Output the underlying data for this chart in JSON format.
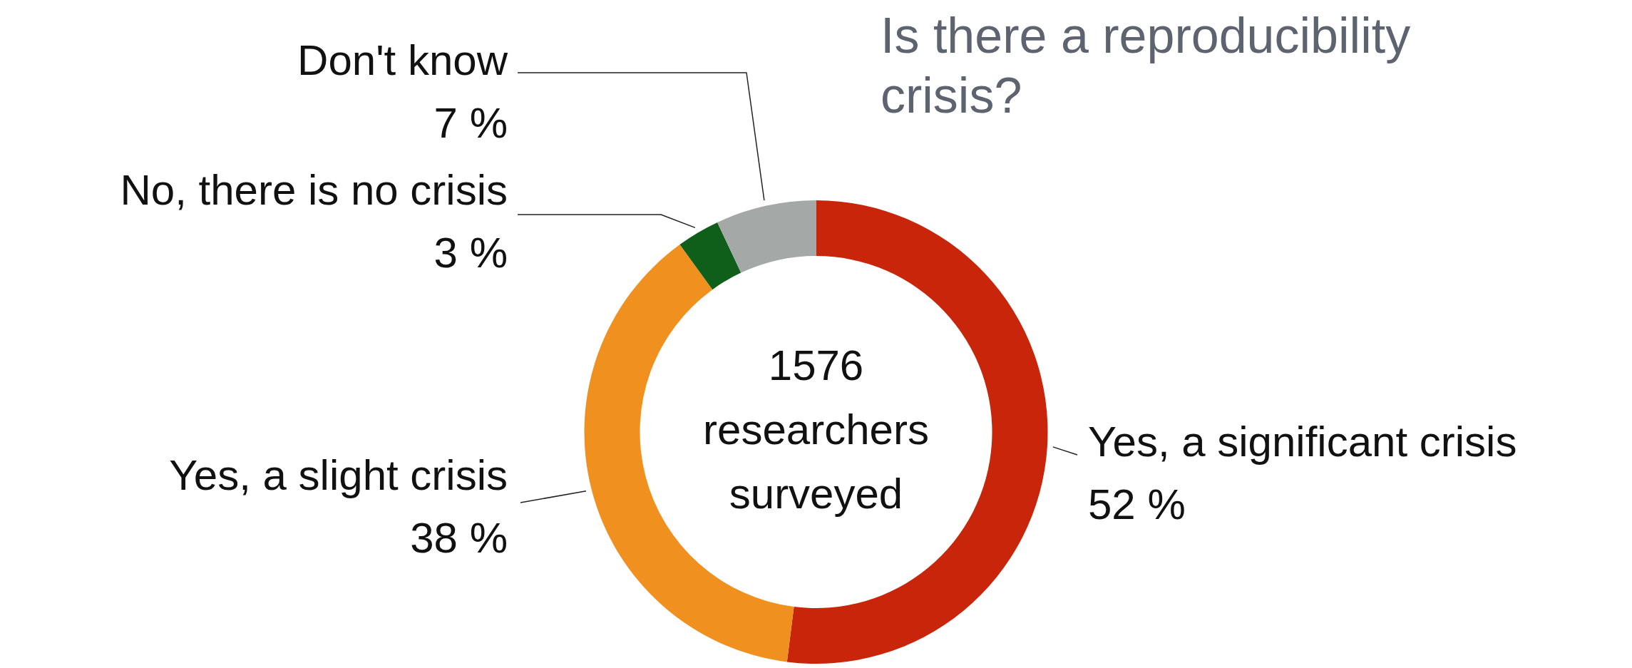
{
  "chart_data": {
    "type": "donut",
    "title": "Is there a reproducibility crisis?",
    "categories": [
      "Yes, a significant crisis",
      "Yes, a slight crisis",
      "No, there is no crisis",
      "Don't know"
    ],
    "values": [
      52,
      38,
      3,
      7
    ],
    "colors": [
      "#c8250a",
      "#f0901e",
      "#0f5e1a",
      "#a4a8a6"
    ],
    "value_labels": [
      "52 %",
      "38 %",
      "3 %",
      "7 %"
    ],
    "annotations": [
      "1576 researchers surveyed"
    ],
    "legend": false
  }
}
